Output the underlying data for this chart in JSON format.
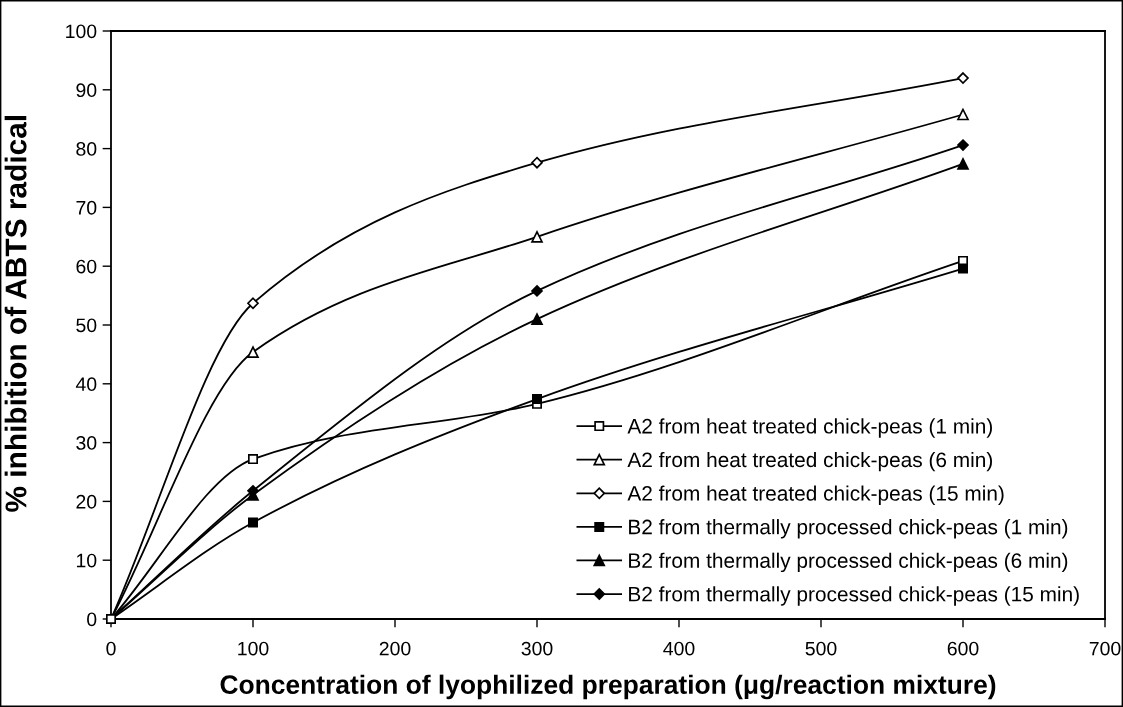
{
  "chart_data": {
    "type": "line",
    "xlabel": "Concentration of lyophilized preparation (μg/reaction mixture)",
    "ylabel": "% inhibition of ABTS radical",
    "x": [
      0,
      100,
      300,
      600
    ],
    "xlim": [
      0,
      700
    ],
    "xticks": [
      0,
      100,
      200,
      300,
      400,
      500,
      600,
      700
    ],
    "ylim": [
      0,
      100
    ],
    "yticks": [
      0,
      10,
      20,
      30,
      40,
      50,
      60,
      70,
      80,
      90,
      100
    ],
    "grid": false,
    "legend": "bottom right",
    "line_style": "solid",
    "series": [
      {
        "name": "A2 from heat treated chick-peas (1 min)",
        "color": "#000000",
        "marker": "square",
        "values": [
          0,
          27.2,
          36.6,
          60.9
        ]
      },
      {
        "name": "A2 from heat treated chick-peas (6 min)",
        "color": "#000000",
        "marker": "triangle",
        "values": [
          0,
          45.4,
          65,
          85.8
        ]
      },
      {
        "name": "A2 from heat treated chick-peas (15 min)",
        "color": "#000000",
        "marker": "diamond",
        "values": [
          0,
          53.7,
          77.6,
          92
        ]
      },
      {
        "name": "B2 from thermally processed chick-peas (1 min)",
        "color": "#000000",
        "marker": "square",
        "values": [
          0,
          16.4,
          37.4,
          59.6
        ]
      },
      {
        "name": "B2 from thermally processed chick-peas (6 min)",
        "color": "#000000",
        "marker": "triangle",
        "values": [
          0,
          21.1,
          51,
          77.4
        ]
      },
      {
        "name": "B2 from thermally processed chick-peas (15 min)",
        "color": "#000000",
        "marker": "diamond",
        "values": [
          0,
          21.8,
          55.8,
          80.6
        ]
      }
    ]
  }
}
